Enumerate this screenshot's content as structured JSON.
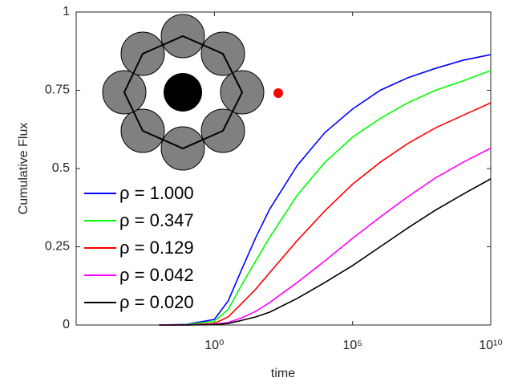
{
  "chart_data": {
    "type": "line",
    "xlabel": "time",
    "ylabel": "Cumulative Flux",
    "xscale": "log",
    "xlim": [
      1e-05,
      10000000000.0
    ],
    "xticks": [
      {
        "value": 1,
        "label": "10⁰"
      },
      {
        "value": 100000,
        "label": "10⁵"
      },
      {
        "value": 10000000000,
        "label": "10¹⁰"
      }
    ],
    "ylim": [
      0,
      1
    ],
    "yticks": [
      0,
      {
        "value": 0.25,
        "label": "0.25"
      },
      0.5,
      0.75,
      1
    ],
    "legend": "lower left",
    "x": [
      0.01,
      0.1,
      1,
      3.162,
      10,
      31.62,
      100,
      1000,
      10000,
      100000,
      1000000,
      10000000,
      100000000,
      1000000000,
      10000000000
    ],
    "series": [
      {
        "name": "ρ = 1.000",
        "color": "#0000ff",
        "values": [
          0,
          0.002,
          0.018,
          0.077,
          0.18,
          0.28,
          0.37,
          0.51,
          0.615,
          0.69,
          0.75,
          0.79,
          0.82,
          0.846,
          0.864
        ]
      },
      {
        "name": "ρ = 0.347",
        "color": "#00ff00",
        "values": [
          0,
          0.001,
          0.012,
          0.05,
          0.13,
          0.205,
          0.28,
          0.415,
          0.52,
          0.6,
          0.66,
          0.71,
          0.75,
          0.78,
          0.813
        ]
      },
      {
        "name": "ρ = 0.129",
        "color": "#ff0000",
        "values": [
          0,
          0,
          0.005,
          0.026,
          0.07,
          0.115,
          0.167,
          0.27,
          0.365,
          0.45,
          0.52,
          0.58,
          0.63,
          0.67,
          0.71
        ]
      },
      {
        "name": "ρ = 0.042",
        "color": "#ff00ff",
        "values": [
          0,
          0,
          0.002,
          0.008,
          0.023,
          0.044,
          0.072,
          0.136,
          0.205,
          0.277,
          0.345,
          0.41,
          0.47,
          0.52,
          0.565
        ]
      },
      {
        "name": "ρ = 0.020",
        "color": "#000000",
        "values": [
          0,
          0,
          0.001,
          0.005,
          0.015,
          0.026,
          0.041,
          0.085,
          0.136,
          0.19,
          0.25,
          0.31,
          0.367,
          0.418,
          0.467
        ]
      }
    ]
  }
}
